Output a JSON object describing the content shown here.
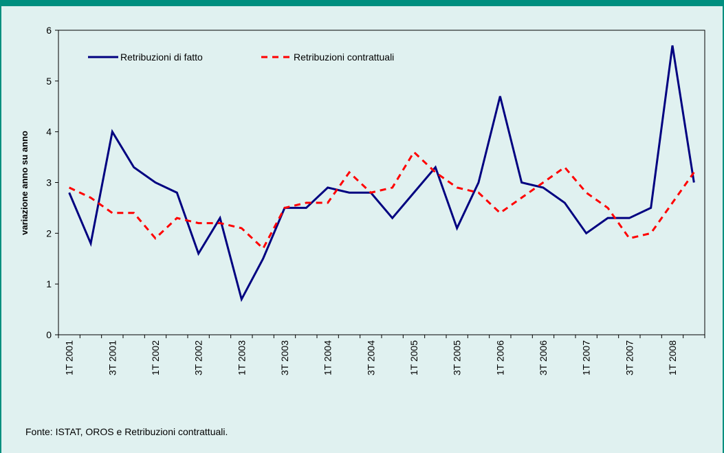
{
  "chart_data": {
    "type": "line",
    "y_label": "variazione anno su anno",
    "source": "Fonte: ISTAT, OROS e Retribuzioni contrattuali.",
    "categories": [
      "1T 2001",
      null,
      "3T 2001",
      null,
      "1T 2002",
      null,
      "3T 2002",
      null,
      "1T 2003",
      null,
      "3T 2003",
      null,
      "1T 2004",
      null,
      "3T 2004",
      null,
      "1T 2005",
      null,
      "3T 2005",
      null,
      "1T 2006",
      null,
      "3T 2006",
      null,
      "1T 2007",
      null,
      "3T 2007",
      null,
      "1T 2008",
      null
    ],
    "series": [
      {
        "name": "Retribuzioni di fatto",
        "color": "#000080",
        "dash": false,
        "values": [
          2.8,
          1.8,
          4.0,
          3.3,
          3.0,
          2.8,
          1.6,
          2.3,
          0.7,
          1.5,
          2.5,
          2.5,
          2.9,
          2.8,
          2.8,
          2.3,
          2.8,
          3.3,
          2.1,
          3.0,
          4.7,
          3.0,
          2.9,
          2.6,
          2.0,
          2.3,
          2.3,
          2.5,
          5.7,
          3.0
        ]
      },
      {
        "name": "Retribuzioni contrattuali",
        "color": "#ff0000",
        "dash": true,
        "values": [
          2.9,
          2.7,
          2.4,
          2.4,
          1.9,
          2.3,
          2.2,
          2.2,
          2.1,
          1.7,
          2.5,
          2.6,
          2.6,
          3.2,
          2.8,
          2.9,
          3.6,
          3.2,
          2.9,
          2.8,
          2.4,
          2.7,
          3.0,
          3.3,
          2.8,
          2.5,
          1.9,
          2.0,
          2.6,
          3.2
        ]
      }
    ],
    "ylim": [
      0,
      6
    ],
    "yticks": [
      0,
      1,
      2,
      3,
      4,
      5,
      6
    ]
  }
}
